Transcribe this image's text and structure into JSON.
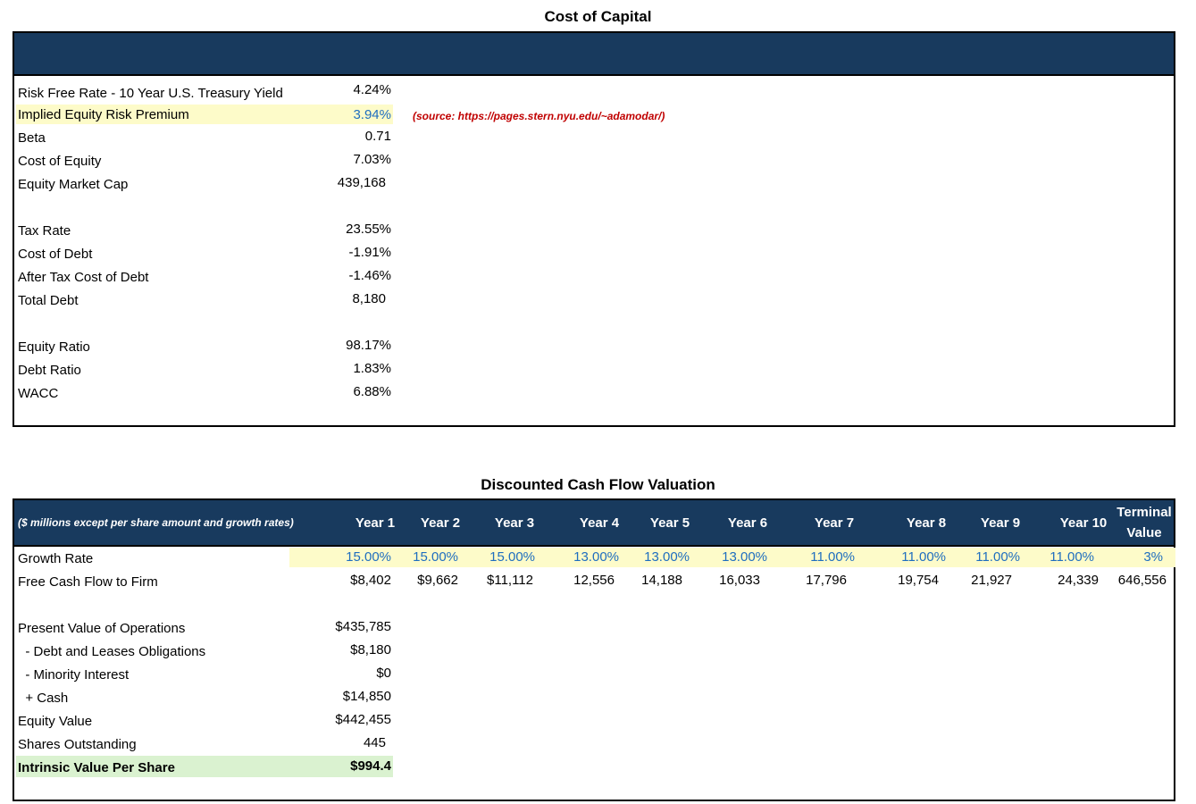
{
  "coc": {
    "title": "Cost of Capital",
    "rows": [
      {
        "label": "Risk Free Rate - 10 Year U.S. Treasury Yield",
        "value": "4.24%"
      },
      {
        "label": "Implied Equity Risk Premium",
        "value": "3.94%"
      },
      {
        "label": "Beta",
        "value": "0.71"
      },
      {
        "label": "Cost of Equity",
        "value": "7.03%"
      },
      {
        "label": "Equity Market Cap",
        "value": "439,168"
      },
      {
        "label": "Tax Rate",
        "value": "23.55%"
      },
      {
        "label": "Cost of Debt",
        "value": "-1.91%"
      },
      {
        "label": "After Tax Cost of Debt",
        "value": "-1.46%"
      },
      {
        "label": "Total Debt",
        "value": "8,180"
      },
      {
        "label": "Equity Ratio",
        "value": "98.17%"
      },
      {
        "label": "Debt Ratio",
        "value": "1.83%"
      },
      {
        "label": "WACC",
        "value": "6.88%"
      }
    ],
    "source_note": "(source: https://pages.stern.nyu.edu/~adamodar/)"
  },
  "dcf": {
    "title": "Discounted Cash Flow Valuation",
    "header_note": "($ millions except per share amount and growth rates)",
    "columns": [
      "Year 1",
      "Year 2",
      "Year 3",
      "Year 4",
      "Year 5",
      "Year 6",
      "Year 7",
      "Year 8",
      "Year 9",
      "Year 10"
    ],
    "terminal_line1": "Terminal",
    "terminal_line2": "Value",
    "growth_label": "Growth Rate",
    "growth": [
      "15.00%",
      "15.00%",
      "15.00%",
      "13.00%",
      "13.00%",
      "13.00%",
      "11.00%",
      "11.00%",
      "11.00%",
      "11.00%",
      "3%"
    ],
    "fcf_label": "Free Cash Flow to Firm",
    "fcf": [
      "$8,402",
      "$9,662",
      "$11,112",
      "12,556",
      "14,188",
      "16,033",
      "17,796",
      "19,754",
      "21,927",
      "24,339",
      "646,556"
    ],
    "summary": [
      {
        "label": "Present Value of Operations",
        "value": "$435,785"
      },
      {
        "label": "  - Debt and Leases Obligations",
        "value": "$8,180"
      },
      {
        "label": "  - Minority Interest",
        "value": "$0"
      },
      {
        "label": "  + Cash",
        "value": "$14,850"
      },
      {
        "label": "Equity Value",
        "value": "$442,455"
      },
      {
        "label": "Shares Outstanding",
        "value": "445"
      },
      {
        "label": "Intrinsic Value Per Share",
        "value": "$994.4"
      }
    ]
  }
}
